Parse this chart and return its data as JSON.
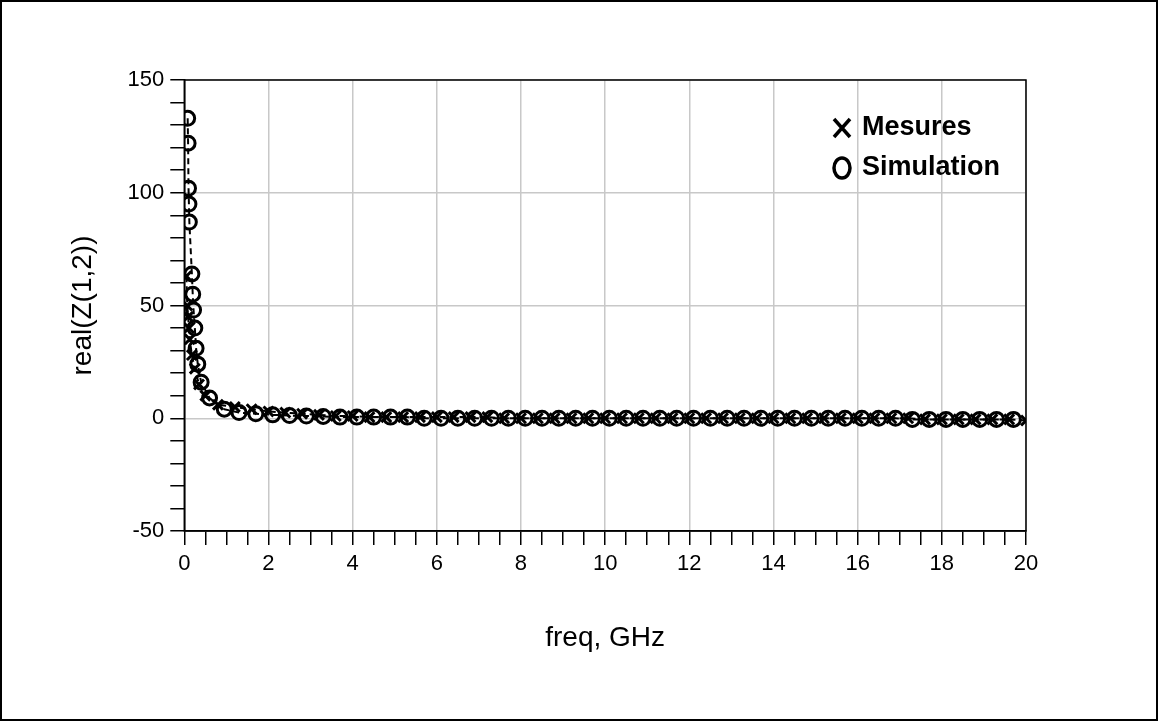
{
  "chart_data": {
    "type": "line",
    "xlabel": "freq, GHz",
    "ylabel": "real(Z(1,2))",
    "xlim": [
      0,
      20
    ],
    "ylim": [
      -50,
      150
    ],
    "xticks": [
      0,
      {
        "value": 0.5,
        "label": null
      },
      {
        "value": 1,
        "label": null
      },
      {
        "value": 1.5,
        "label": null
      },
      2,
      {
        "value": 2.5,
        "label": null
      },
      {
        "value": 3,
        "label": null
      },
      {
        "value": 3.5,
        "label": null
      },
      4,
      {
        "value": 4.5,
        "label": null
      },
      {
        "value": 5,
        "label": null
      },
      {
        "value": 5.5,
        "label": null
      },
      6,
      {
        "value": 6.5,
        "label": null
      },
      {
        "value": 7,
        "label": null
      },
      {
        "value": 7.5,
        "label": null
      },
      8,
      {
        "value": 8.5,
        "label": null
      },
      {
        "value": 9,
        "label": null
      },
      {
        "value": 9.5,
        "label": null
      },
      10,
      {
        "value": 10.5,
        "label": null
      },
      {
        "value": 11,
        "label": null
      },
      {
        "value": 11.5,
        "label": null
      },
      12,
      {
        "value": 12.5,
        "label": null
      },
      {
        "value": 13,
        "label": null
      },
      {
        "value": 13.5,
        "label": null
      },
      14,
      {
        "value": 14.5,
        "label": null
      },
      {
        "value": 15,
        "label": null
      },
      {
        "value": 15.5,
        "label": null
      },
      16,
      {
        "value": 16.5,
        "label": null
      },
      {
        "value": 17,
        "label": null
      },
      {
        "value": 17.5,
        "label": null
      },
      18,
      {
        "value": 18.5,
        "label": null
      },
      {
        "value": 19,
        "label": null
      },
      {
        "value": 19.5,
        "label": null
      },
      20
    ],
    "yticks": [
      -50,
      {
        "value": -40,
        "label": null
      },
      {
        "value": -30,
        "label": null
      },
      {
        "value": -20,
        "label": null
      },
      {
        "value": -10,
        "label": null
      },
      0,
      {
        "value": 10,
        "label": null
      },
      {
        "value": 20,
        "label": null
      },
      {
        "value": 30,
        "label": null
      },
      {
        "value": 40,
        "label": null
      },
      50,
      {
        "value": 60,
        "label": null
      },
      {
        "value": 70,
        "label": null
      },
      {
        "value": 80,
        "label": null
      },
      {
        "value": 90,
        "label": null
      },
      100,
      {
        "value": 110,
        "label": null
      },
      {
        "value": 120,
        "label": null
      },
      {
        "value": 130,
        "label": null
      },
      {
        "value": 140,
        "label": null
      },
      150
    ],
    "grid": true,
    "legend": "top right",
    "line_style": "dashed",
    "series": [
      {
        "name": "Mesures",
        "color": "#000000",
        "marker": "cross",
        "x": [
          0.05,
          0.07,
          0.09,
          0.11,
          0.13,
          0.18,
          0.25,
          0.35,
          0.5,
          0.8,
          1.2,
          1.6,
          2.0,
          2.4,
          2.8,
          3.2,
          3.6,
          4.0,
          4.4,
          4.8,
          5.2,
          5.6,
          6.0,
          6.4,
          6.8,
          7.2,
          7.6,
          8.0,
          8.4,
          8.8,
          9.2,
          9.6,
          10.0,
          10.4,
          10.8,
          11.2,
          11.6,
          12.0,
          12.4,
          12.8,
          13.2,
          13.6,
          14.0,
          14.4,
          14.8,
          15.2,
          15.6,
          16.0,
          16.4,
          16.8,
          17.2,
          17.6,
          18.0,
          18.4,
          18.8,
          19.2,
          19.6,
          20.0
        ],
        "values": [
          63,
          50,
          45,
          40,
          35,
          28,
          22,
          15,
          10,
          6,
          5,
          4,
          3,
          2.5,
          2,
          1.5,
          1,
          1,
          0.5,
          0.5,
          0.5,
          0.5,
          0.5,
          0.5,
          0.5,
          0.5,
          0,
          0,
          0,
          0,
          0,
          0,
          0,
          0,
          0,
          0,
          0,
          0,
          0,
          0,
          0,
          0,
          0,
          0,
          0,
          0,
          0,
          0,
          0,
          0,
          0,
          -0.5,
          -0.5,
          -0.5,
          -0.5,
          -0.5,
          -0.5,
          -1
        ]
      },
      {
        "name": "Simulation",
        "color": "#000000",
        "marker": "circle",
        "x": [
          0.08,
          0.09,
          0.1,
          0.11,
          0.12,
          0.18,
          0.2,
          0.22,
          0.25,
          0.28,
          0.32,
          0.4,
          0.6,
          0.95,
          1.3,
          1.7,
          2.1,
          2.5,
          2.9,
          3.3,
          3.7,
          4.1,
          4.5,
          4.9,
          5.3,
          5.7,
          6.1,
          6.5,
          6.9,
          7.3,
          7.7,
          8.1,
          8.5,
          8.9,
          9.3,
          9.7,
          10.1,
          10.5,
          10.9,
          11.3,
          11.7,
          12.1,
          12.5,
          12.9,
          13.3,
          13.7,
          14.1,
          14.5,
          14.9,
          15.3,
          15.7,
          16.1,
          16.5,
          16.9,
          17.3,
          17.7,
          18.1,
          18.5,
          18.9,
          19.3,
          19.7
        ],
        "values": [
          133,
          122,
          102,
          95,
          87,
          64,
          55,
          48,
          40,
          31,
          24,
          16,
          9,
          4,
          2.5,
          2,
          1.5,
          1.2,
          1,
          0.8,
          0.5,
          0.5,
          0.5,
          0.5,
          0.5,
          0,
          0,
          0,
          0,
          0,
          0,
          0,
          0,
          0,
          0,
          0,
          0,
          0,
          0,
          0,
          0,
          0,
          0,
          0,
          0,
          0,
          0,
          0,
          0,
          0,
          0,
          0,
          0,
          0,
          -0.5,
          -0.5,
          -0.5,
          -0.5,
          -0.5,
          -0.5,
          -0.5
        ]
      }
    ]
  }
}
